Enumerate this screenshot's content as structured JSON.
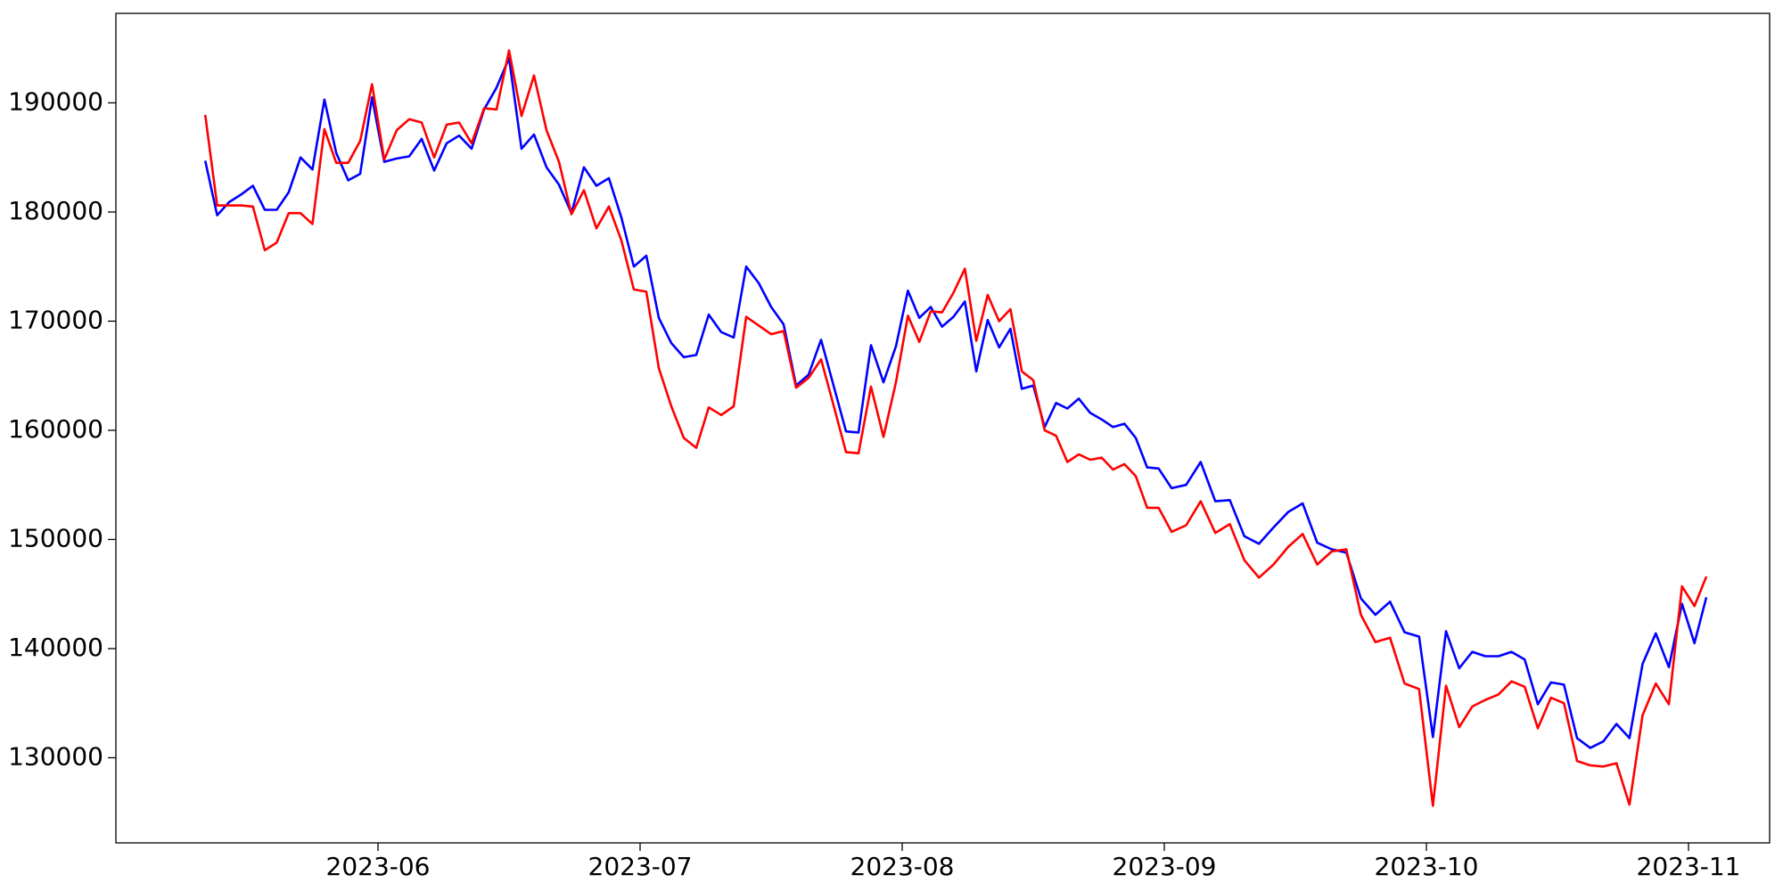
{
  "chart_data": {
    "type": "line",
    "x": [
      "2023-05",
      "2023-05",
      "2023-05",
      "2023-05",
      "2023-05",
      "2023-05",
      "2023-05",
      "2023-05",
      "2023-05",
      "2023-05",
      "2023-05",
      "2023-05",
      "2023-05",
      "2023-05",
      "2023-05",
      "2023-06",
      "2023-06",
      "2023-06",
      "2023-06",
      "2023-06",
      "2023-06",
      "2023-06",
      "2023-06",
      "2023-06",
      "2023-06",
      "2023-06",
      "2023-06",
      "2023-06",
      "2023-06",
      "2023-06",
      "2023-06",
      "2023-06",
      "2023-06",
      "2023-06",
      "2023-06",
      "2023-06",
      "2023-07",
      "2023-07",
      "2023-07",
      "2023-07",
      "2023-07",
      "2023-07",
      "2023-07",
      "2023-07",
      "2023-07",
      "2023-07",
      "2023-07",
      "2023-07",
      "2023-07",
      "2023-07",
      "2023-07",
      "2023-07",
      "2023-07",
      "2023-07",
      "2023-07",
      "2023-07",
      "2023-07",
      "2023-08",
      "2023-08",
      "2023-08",
      "2023-08",
      "2023-08",
      "2023-08",
      "2023-08",
      "2023-08",
      "2023-08",
      "2023-08",
      "2023-08",
      "2023-08",
      "2023-08",
      "2023-08",
      "2023-08",
      "2023-08",
      "2023-08",
      "2023-08",
      "2023-08",
      "2023-08",
      "2023-08",
      "2023-08",
      "2023-08",
      "2023-09",
      "2023-09",
      "2023-09",
      "2023-09",
      "2023-09",
      "2023-09",
      "2023-09",
      "2023-09",
      "2023-09",
      "2023-09",
      "2023-09",
      "2023-09",
      "2023-09",
      "2023-09",
      "2023-09",
      "2023-09",
      "2023-09",
      "2023-09",
      "2023-10",
      "2023-10",
      "2023-10",
      "2023-10",
      "2023-10",
      "2023-10",
      "2023-10",
      "2023-10",
      "2023-10",
      "2023-10",
      "2023-10",
      "2023-10",
      "2023-10",
      "2023-10",
      "2023-10",
      "2023-10",
      "2023-10",
      "2023-10",
      "2023-10",
      "2023-10",
      "2023-11",
      "2023-11"
    ],
    "series": [
      {
        "color": "#0000ff",
        "values": [
          184700,
          179700,
          180900,
          181600,
          182400,
          180200,
          180200,
          181800,
          185000,
          183900,
          190300,
          185400,
          182900,
          183500,
          190500,
          184600,
          184900,
          185100,
          186700,
          183800,
          186300,
          187000,
          185800,
          189400,
          191400,
          194100,
          185800,
          187100,
          184100,
          182500,
          179900,
          184100,
          182400,
          183100,
          179500,
          175000,
          176000,
          170300,
          168000,
          166700,
          166900,
          170600,
          169000,
          168500,
          175000,
          173500,
          171300,
          169700,
          164100,
          165100,
          168300,
          164100,
          159900,
          159800,
          167800,
          164400,
          167700,
          172800,
          170300,
          171300,
          169500,
          170400,
          171800,
          165400,
          170100,
          167600,
          169300,
          163800,
          164100,
          160300,
          162500,
          162000,
          162900,
          161600,
          161000,
          160300,
          160600,
          159300,
          156600,
          156500,
          154700,
          155000,
          157100,
          153500,
          153600,
          150300,
          149600,
          151100,
          152500,
          153300,
          149700,
          149100,
          148800,
          144600,
          143100,
          144300,
          141500,
          141100,
          131900,
          141600,
          138200,
          139700,
          139300,
          139300,
          139700,
          139000,
          134900,
          136900,
          136700,
          131800,
          130900,
          131500,
          133100,
          131800,
          138600,
          141400,
          138300,
          144100,
          140500,
          144700
        ]
      },
      {
        "color": "#ff0000",
        "values": [
          188900,
          180600,
          180600,
          180600,
          180500,
          176500,
          177200,
          179900,
          179900,
          178900,
          187600,
          184500,
          184500,
          186500,
          191700,
          184800,
          187500,
          188500,
          188200,
          185000,
          188000,
          188200,
          186300,
          189500,
          189400,
          194800,
          188800,
          192500,
          187500,
          184600,
          179800,
          182000,
          178500,
          180500,
          177400,
          172900,
          172700,
          165700,
          162200,
          159300,
          158400,
          162100,
          161400,
          162200,
          170400,
          169600,
          168800,
          169100,
          163900,
          164800,
          166500,
          162300,
          158000,
          157900,
          164000,
          159400,
          164400,
          170500,
          168100,
          170900,
          170800,
          172600,
          174800,
          168200,
          172400,
          170000,
          171100,
          165400,
          164600,
          160000,
          159500,
          157100,
          157800,
          157300,
          157500,
          156400,
          156900,
          155800,
          152900,
          152900,
          150700,
          151300,
          153500,
          150600,
          151400,
          148100,
          146500,
          147700,
          149300,
          150500,
          147700,
          148900,
          149100,
          143100,
          140600,
          141000,
          136800,
          136300,
          125600,
          136600,
          132800,
          134700,
          135300,
          135800,
          137000,
          136500,
          132700,
          135500,
          135000,
          129700,
          129300,
          129200,
          129500,
          125700,
          133900,
          136800,
          134900,
          145700,
          143900,
          146600
        ]
      }
    ],
    "xticks": [
      "2023-06",
      "2023-07",
      "2023-08",
      "2023-09",
      "2023-10",
      "2023-11"
    ],
    "ylim": [
      122200,
      198200
    ],
    "yticks": [
      130000,
      140000,
      150000,
      160000,
      170000,
      180000,
      190000
    ],
    "grid": false
  }
}
